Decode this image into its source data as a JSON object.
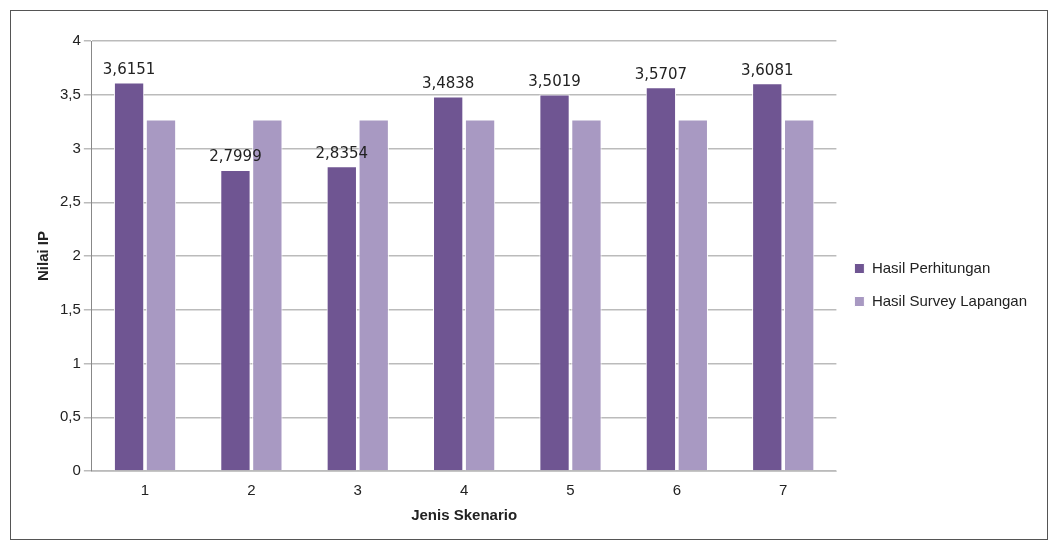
{
  "chart_data": {
    "type": "bar",
    "xlabel": "Jenis Skenario",
    "ylabel": "Nilai IP",
    "categories": [
      "1",
      "2",
      "3",
      "4",
      "5",
      "6",
      "7"
    ],
    "series": [
      {
        "name": "Hasil Perhitungan",
        "color": "#6f5592",
        "values": [
          3.6151,
          2.7999,
          2.8354,
          3.4838,
          3.5019,
          3.5707,
          3.6081
        ],
        "value_labels": [
          "3,6151",
          "2,7999",
          "2,8354",
          "3,4838",
          "3,5019",
          "3,5707",
          "3,6081"
        ]
      },
      {
        "name": "Hasil Survey Lapangan",
        "color": "#a899c2",
        "values": [
          3.27,
          3.27,
          3.27,
          3.27,
          3.27,
          3.27,
          3.27
        ]
      }
    ],
    "ylim": [
      0,
      4
    ],
    "yticks": [
      0,
      {
        "value": 0.5,
        "label": "0,5"
      },
      1,
      {
        "value": 1.5,
        "label": "1,5"
      },
      2,
      {
        "value": 2.5,
        "label": "2,5"
      },
      3,
      {
        "value": 3.5,
        "label": "3,5"
      },
      4
    ],
    "grid": "y",
    "legend": "right"
  }
}
